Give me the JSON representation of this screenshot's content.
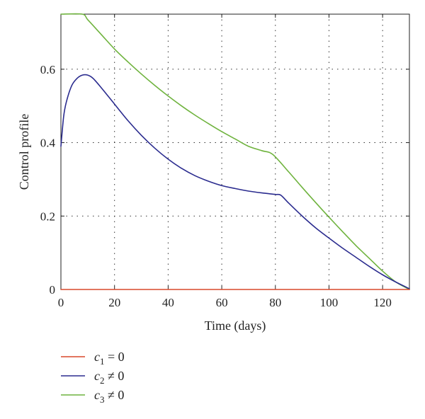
{
  "chart_data": {
    "type": "line",
    "xlabel": "Time (days)",
    "ylabel": "Control profile",
    "xlim": [
      0,
      130
    ],
    "ylim": [
      0,
      0.75
    ],
    "xticks": [
      0,
      20,
      40,
      60,
      80,
      100,
      120
    ],
    "yticks": [
      0,
      0.2,
      0.4,
      0.6
    ],
    "xtick_labels": [
      "0",
      "20",
      "40",
      "60",
      "80",
      "100",
      "120"
    ],
    "ytick_labels": [
      "0",
      "0.2",
      "0.4",
      "0.6"
    ],
    "grid": true,
    "legend_position": "bottom-left",
    "series": [
      {
        "name": "c1 = 0",
        "legend": {
          "sym": "c",
          "sub": "1",
          "rel": " = 0"
        },
        "color": "#d9492b",
        "x": [
          0,
          130
        ],
        "y": [
          0,
          0
        ]
      },
      {
        "name": "c2 ≠ 0",
        "legend": {
          "sym": "c",
          "sub": "2",
          "rel": " ≠ 0"
        },
        "color": "#2b2c8f",
        "x": [
          0,
          1,
          2,
          4,
          6,
          8,
          10,
          12,
          15,
          20,
          25,
          30,
          35,
          40,
          45,
          50,
          55,
          60,
          65,
          70,
          75,
          80,
          82,
          85,
          90,
          95,
          100,
          105,
          110,
          115,
          120,
          125,
          130
        ],
        "y": [
          0.39,
          0.47,
          0.51,
          0.555,
          0.575,
          0.584,
          0.584,
          0.575,
          0.55,
          0.505,
          0.46,
          0.42,
          0.385,
          0.355,
          0.33,
          0.31,
          0.295,
          0.283,
          0.275,
          0.268,
          0.263,
          0.259,
          0.257,
          0.235,
          0.2,
          0.168,
          0.14,
          0.113,
          0.088,
          0.063,
          0.04,
          0.02,
          0.002
        ]
      },
      {
        "name": "c3 ≠ 0",
        "legend": {
          "sym": "c",
          "sub": "3",
          "rel": " ≠ 0"
        },
        "color": "#6fb33e",
        "x": [
          0,
          8,
          10,
          15,
          20,
          25,
          30,
          35,
          40,
          45,
          50,
          55,
          60,
          65,
          70,
          75,
          79,
          85,
          90,
          95,
          100,
          105,
          110,
          115,
          120,
          125,
          130
        ],
        "y": [
          0.75,
          0.75,
          0.735,
          0.695,
          0.655,
          0.62,
          0.587,
          0.556,
          0.527,
          0.5,
          0.475,
          0.452,
          0.43,
          0.41,
          0.39,
          0.378,
          0.368,
          0.32,
          0.278,
          0.237,
          0.197,
          0.158,
          0.12,
          0.085,
          0.05,
          0.02,
          0.0
        ]
      }
    ]
  }
}
